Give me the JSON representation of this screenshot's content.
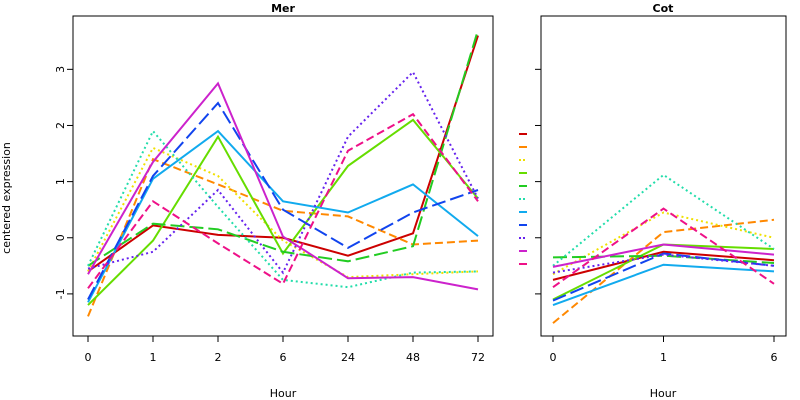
{
  "chart_data": {
    "type": "line",
    "ylabel": "centered expression",
    "yticks": [
      -1,
      0,
      1,
      2,
      3
    ],
    "ylim": [
      -1.75,
      3.95
    ],
    "panels": [
      {
        "title": "Mer",
        "xlabel": "Hour",
        "x": [
          "0",
          "1",
          "2",
          "6",
          "24",
          "48",
          "72"
        ],
        "series": [
          {
            "color": "#cc0000",
            "dash": "solid",
            "values": [
              -0.6,
              0.22,
              0.05,
              0.0,
              -0.32,
              0.08,
              3.6
            ]
          },
          {
            "color": "#ff8800",
            "dash": "dashed",
            "values": [
              -1.4,
              1.4,
              0.95,
              0.48,
              0.38,
              -0.12,
              -0.05
            ]
          },
          {
            "color": "#f0e000",
            "dash": "dotted",
            "values": [
              -0.6,
              1.6,
              1.1,
              -0.05,
              -0.7,
              -0.65,
              -0.6
            ]
          },
          {
            "color": "#66dd00",
            "dash": "solid",
            "values": [
              -1.2,
              -0.05,
              1.8,
              -0.28,
              1.28,
              2.1,
              0.7
            ]
          },
          {
            "color": "#22cc22",
            "dash": "longdash",
            "values": [
              -0.5,
              0.25,
              0.15,
              -0.25,
              -0.42,
              -0.15,
              3.7
            ]
          },
          {
            "color": "#22ddaa",
            "dash": "dotted",
            "values": [
              -0.5,
              1.9,
              0.55,
              -0.75,
              -0.88,
              -0.62,
              -0.6
            ]
          },
          {
            "color": "#11aaee",
            "dash": "solid",
            "values": [
              -1.15,
              1.05,
              1.9,
              0.65,
              0.45,
              0.95,
              0.03
            ]
          },
          {
            "color": "#1144ee",
            "dash": "longdash",
            "values": [
              -1.1,
              1.1,
              2.4,
              0.5,
              -0.18,
              0.45,
              0.85
            ]
          },
          {
            "color": "#6622ee",
            "dash": "dotted",
            "values": [
              -0.55,
              -0.25,
              0.85,
              -0.62,
              1.8,
              2.95,
              0.7
            ]
          },
          {
            "color": "#cc22cc",
            "dash": "solid",
            "values": [
              -0.65,
              1.35,
              2.75,
              0.02,
              -0.72,
              -0.7,
              -0.92
            ]
          },
          {
            "color": "#ee1188",
            "dash": "dashed",
            "values": [
              -0.9,
              0.65,
              -0.1,
              -0.82,
              1.55,
              2.2,
              0.65
            ]
          }
        ]
      },
      {
        "title": "Cot",
        "xlabel": "Hour",
        "x": [
          "0",
          "1",
          "6"
        ],
        "series": [
          {
            "color": "#cc0000",
            "dash": "solid",
            "values": [
              -0.75,
              -0.25,
              -0.4
            ]
          },
          {
            "color": "#ff8800",
            "dash": "dashed",
            "values": [
              -1.52,
              0.1,
              0.32
            ]
          },
          {
            "color": "#f0e000",
            "dash": "dotted",
            "values": [
              -0.65,
              0.45,
              0.0
            ]
          },
          {
            "color": "#66dd00",
            "dash": "solid",
            "values": [
              -1.1,
              -0.12,
              -0.2
            ]
          },
          {
            "color": "#22cc22",
            "dash": "longdash",
            "values": [
              -0.35,
              -0.32,
              -0.45
            ]
          },
          {
            "color": "#22ddaa",
            "dash": "dotted",
            "values": [
              -0.5,
              1.12,
              -0.2
            ]
          },
          {
            "color": "#11aaee",
            "dash": "solid",
            "values": [
              -1.2,
              -0.48,
              -0.6
            ]
          },
          {
            "color": "#1144ee",
            "dash": "longdash",
            "values": [
              -1.12,
              -0.28,
              -0.5
            ]
          },
          {
            "color": "#6622ee",
            "dash": "dotted",
            "values": [
              -0.62,
              -0.3,
              -0.5
            ]
          },
          {
            "color": "#cc22cc",
            "dash": "solid",
            "values": [
              -0.52,
              -0.12,
              -0.3
            ]
          },
          {
            "color": "#ee1188",
            "dash": "dashed",
            "values": [
              -0.88,
              0.52,
              -0.82
            ]
          }
        ]
      }
    ]
  }
}
